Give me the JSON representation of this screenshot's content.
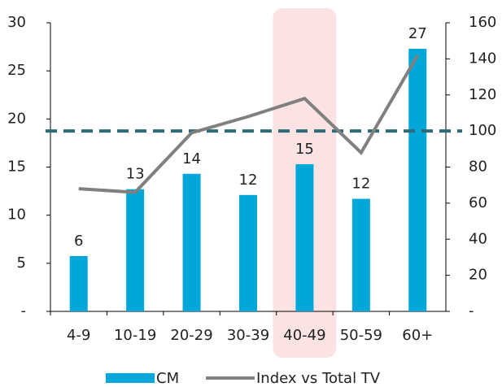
{
  "chart_data": {
    "type": "bar-line",
    "categories": [
      "4-9",
      "10-19",
      "20-29",
      "30-39",
      "40-49",
      "50-59",
      "60+"
    ],
    "series": [
      {
        "name": "CM",
        "type": "bar",
        "color": "#00a7d8",
        "values": [
          5.75,
          12.7,
          14.3,
          12.1,
          15.3,
          11.7,
          27.3
        ],
        "value_labels": [
          "6",
          "13",
          "14",
          "12",
          "15",
          "12",
          "27"
        ]
      },
      {
        "name": "Index vs Total TV",
        "type": "line",
        "axis": "y2",
        "color": "#808080",
        "values": [
          68,
          66,
          99,
          108,
          118,
          88,
          142
        ]
      }
    ],
    "ylim": [
      0,
      30
    ],
    "yticks": [
      {
        "value": 0,
        "label": "-"
      },
      5,
      10,
      15,
      20,
      25,
      30
    ],
    "y2lim": [
      0,
      160
    ],
    "y2ticks": [
      {
        "value": 0,
        "label": "-"
      },
      20,
      40,
      60,
      80,
      100,
      120,
      140,
      160
    ],
    "reference_line": {
      "value": 100,
      "axis": "y2",
      "color": "#2e6b78"
    },
    "highlight": "40-49",
    "legend": "bottom"
  }
}
